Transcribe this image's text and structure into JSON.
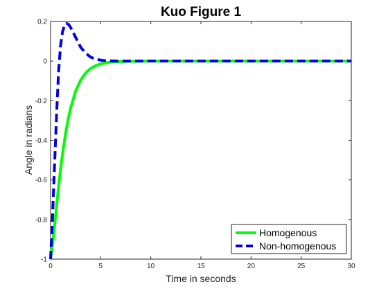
{
  "chart_data": {
    "type": "line",
    "title": "Kuo Figure 1",
    "xlabel": "Time in seconds",
    "ylabel": "Angle in radians",
    "xlim": [
      0,
      30
    ],
    "ylim": [
      -1,
      0.2
    ],
    "xticks": [
      0,
      5,
      10,
      15,
      20,
      25,
      30
    ],
    "yticks": [
      -1,
      -0.8,
      -0.6,
      -0.4,
      -0.2,
      0,
      0.2
    ],
    "xtick_labels": [
      "0",
      "5",
      "10",
      "15",
      "20",
      "25",
      "30"
    ],
    "ytick_labels": [
      "-1",
      "-0.8",
      "-0.6",
      "-0.4",
      "-0.2",
      "0",
      "0.2"
    ],
    "grid": false,
    "legend_position": "bottom-right",
    "series": [
      {
        "name": "Homogenous",
        "color": "#00ff00",
        "style": "solid",
        "x": [
          0,
          0.25,
          0.5,
          0.75,
          1,
          1.25,
          1.5,
          1.75,
          2,
          2.5,
          3,
          3.5,
          4,
          4.5,
          5,
          5.5,
          6,
          7,
          8,
          10,
          15,
          20,
          25,
          30
        ],
        "y": [
          -1,
          -0.905,
          -0.779,
          -0.656,
          -0.544,
          -0.447,
          -0.364,
          -0.294,
          -0.237,
          -0.151,
          -0.096,
          -0.06,
          -0.037,
          -0.023,
          -0.014,
          -0.009,
          -0.005,
          -0.002,
          -0.001,
          0,
          0,
          0,
          0,
          0
        ]
      },
      {
        "name": "Non-homogenous",
        "color": "#0000e6",
        "style": "dashed",
        "x": [
          0,
          0.2,
          0.4,
          0.6,
          0.8,
          1,
          1.2,
          1.4,
          1.6,
          1.8,
          2,
          2.3,
          2.6,
          3,
          3.5,
          4,
          4.5,
          5,
          5.5,
          6,
          7,
          8,
          10,
          15,
          20,
          25,
          30
        ],
        "y": [
          -1,
          -0.78,
          -0.52,
          -0.27,
          -0.05,
          0.08,
          0.15,
          0.18,
          0.19,
          0.185,
          0.17,
          0.14,
          0.11,
          0.07,
          0.04,
          0.02,
          0.01,
          0.005,
          0.002,
          0.001,
          0,
          0,
          0,
          0,
          0,
          0,
          0
        ]
      }
    ]
  }
}
